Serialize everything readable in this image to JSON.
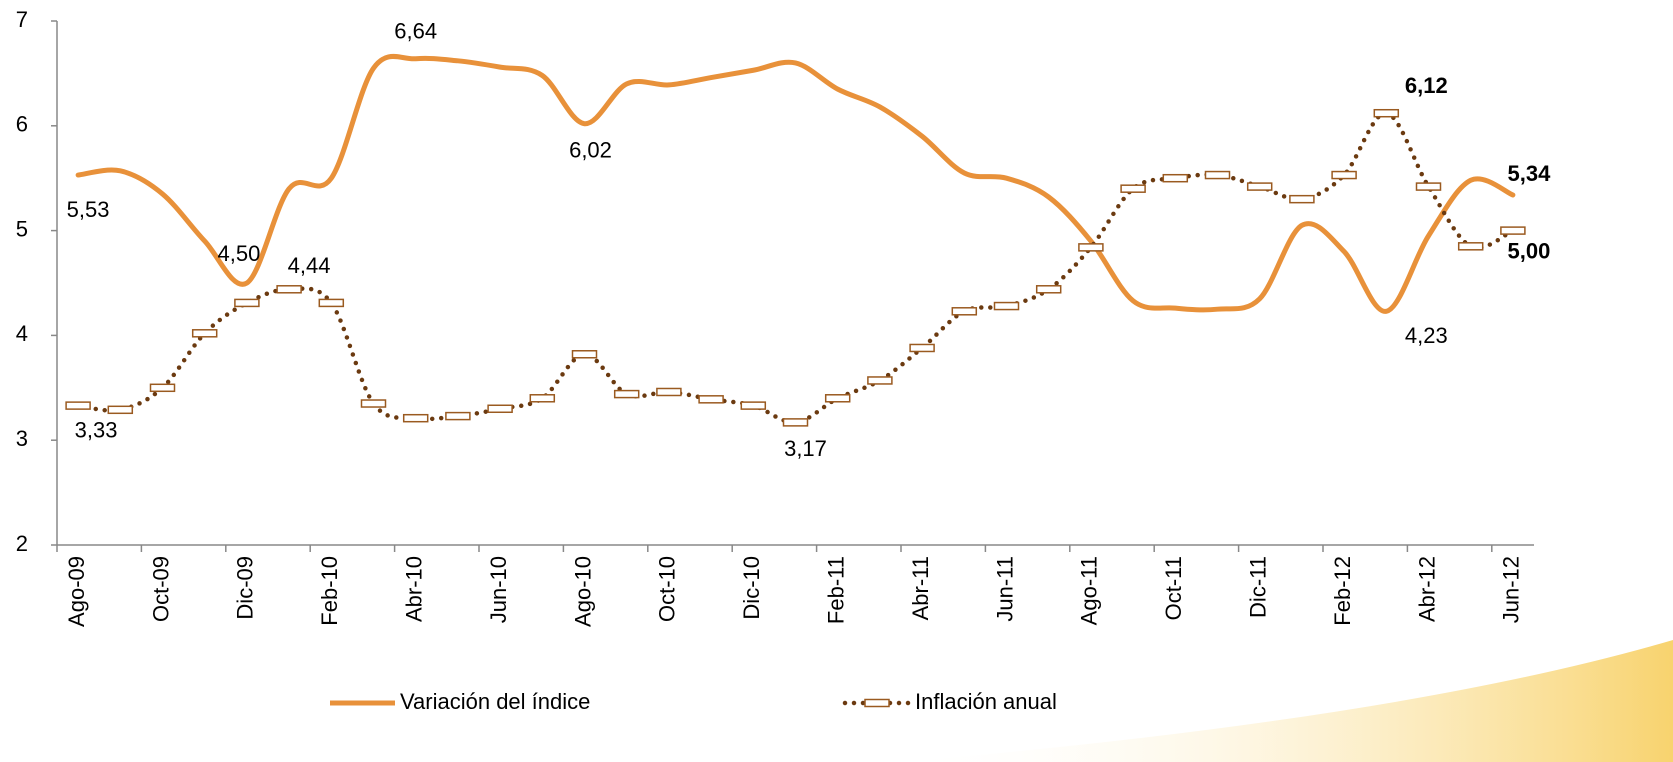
{
  "chart_data": {
    "type": "line",
    "categories": [
      "Ago-09",
      null,
      "Oct-09",
      null,
      "Dic-09",
      null,
      "Feb-10",
      null,
      "Abr-10",
      null,
      "Jun-10",
      null,
      "Ago-10",
      null,
      "Oct-10",
      null,
      "Dic-10",
      null,
      "Feb-11",
      null,
      "Abr-11",
      null,
      "Jun-11",
      null,
      "Ago-11",
      null,
      "Oct-11",
      null,
      "Dic-11",
      null,
      "Feb-12",
      null,
      "Abr-12",
      null,
      "Jun-12"
    ],
    "series": [
      {
        "name": "Variación del índice",
        "color": "#e8913a",
        "style": "solid",
        "values": [
          5.53,
          5.57,
          5.35,
          4.9,
          4.5,
          5.4,
          5.5,
          6.55,
          6.64,
          6.62,
          6.56,
          6.48,
          6.02,
          6.4,
          6.39,
          6.46,
          6.53,
          6.6,
          6.35,
          6.18,
          5.9,
          5.55,
          5.5,
          5.32,
          4.9,
          4.33,
          4.26,
          4.25,
          4.35,
          5.05,
          4.8,
          4.23,
          4.95,
          5.48,
          5.34
        ],
        "value_labels": [
          "5,53",
          null,
          null,
          null,
          "4,50",
          null,
          null,
          null,
          "6,64",
          null,
          null,
          null,
          "6,02",
          null,
          null,
          null,
          null,
          null,
          null,
          null,
          null,
          null,
          null,
          null,
          null,
          null,
          null,
          null,
          null,
          null,
          null,
          "4,23",
          null,
          null,
          "5,34"
        ]
      },
      {
        "name": "Inflación anual",
        "color": "#6b3a10",
        "style": "dotted",
        "values": [
          3.33,
          3.29,
          3.5,
          4.02,
          4.31,
          4.44,
          4.31,
          3.35,
          3.21,
          3.23,
          3.3,
          3.4,
          3.82,
          3.44,
          3.46,
          3.39,
          3.33,
          3.17,
          3.4,
          3.57,
          3.88,
          4.23,
          4.28,
          4.44,
          4.84,
          5.4,
          5.5,
          5.53,
          5.42,
          5.3,
          5.53,
          6.12,
          5.42,
          4.85,
          5.0
        ],
        "value_labels": [
          "3,33",
          null,
          null,
          null,
          null,
          "4,44",
          null,
          null,
          null,
          null,
          null,
          null,
          null,
          null,
          null,
          null,
          null,
          "3,17",
          null,
          null,
          null,
          null,
          null,
          null,
          null,
          null,
          null,
          null,
          null,
          null,
          null,
          "6,12",
          null,
          null,
          "5,00"
        ]
      }
    ],
    "ylim": [
      2,
      7
    ],
    "yticks": [
      2,
      3,
      4,
      5,
      6,
      7
    ],
    "grid": false
  }
}
